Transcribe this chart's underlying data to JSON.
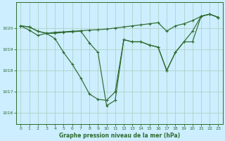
{
  "xlabel": "Graphe pression niveau de la mer (hPa)",
  "background_color": "#cceeff",
  "grid_color": "#aaccbb",
  "line_color": "#2d6a2d",
  "xlim": [
    -0.5,
    23.5
  ],
  "ylim": [
    1015.5,
    1021.2
  ],
  "yticks": [
    1016,
    1017,
    1018,
    1019,
    1020
  ],
  "xticks": [
    0,
    1,
    2,
    3,
    4,
    5,
    6,
    7,
    8,
    9,
    10,
    11,
    12,
    13,
    14,
    15,
    16,
    17,
    18,
    19,
    20,
    21,
    22,
    23
  ],
  "series1": [
    1020.1,
    1020.05,
    1019.85,
    1019.75,
    1019.8,
    1019.82,
    1019.85,
    1019.87,
    1019.9,
    1019.92,
    1019.95,
    1020.0,
    1020.05,
    1020.1,
    1020.15,
    1020.2,
    1020.25,
    1019.85,
    1020.1,
    1020.2,
    1020.35,
    1020.55,
    1020.65,
    1020.5
  ],
  "series2": [
    1020.1,
    1019.9,
    1019.65,
    1019.75,
    1019.5,
    1018.85,
    1018.3,
    1017.65,
    1016.9,
    1016.65,
    1016.6,
    1017.0,
    1019.45,
    1019.35,
    1019.35,
    1019.2,
    1019.1,
    1018.0,
    1018.85,
    1019.35,
    1019.35,
    1020.55,
    1020.65,
    1020.5
  ],
  "series3": [
    1020.1,
    1020.05,
    1019.85,
    1019.75,
    1019.75,
    1019.8,
    1019.82,
    1019.85,
    1019.3,
    1018.85,
    1016.35,
    1016.6,
    1019.45,
    1019.35,
    1019.35,
    1019.2,
    1019.1,
    1018.0,
    1018.85,
    1019.35,
    1019.85,
    1020.55,
    1020.65,
    1020.5
  ]
}
